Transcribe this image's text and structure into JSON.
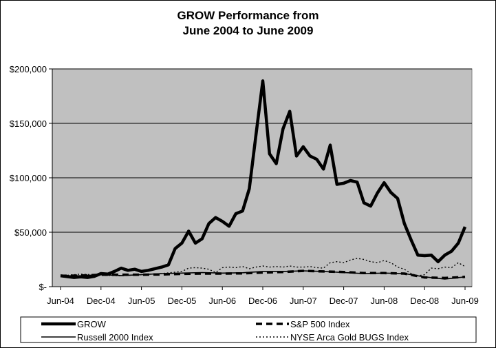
{
  "chart_data": {
    "type": "line",
    "title_line1": "GROW Performance from",
    "title_line2": "June 2004 to June 2009",
    "xlabel": "",
    "ylabel": "",
    "ylim": [
      0,
      200000
    ],
    "y_ticks": [
      0,
      50000,
      100000,
      150000,
      200000
    ],
    "y_tick_labels": [
      "$-",
      "$50,000",
      "$100,000",
      "$150,000",
      "$200,000"
    ],
    "x_tick_labels": [
      "Jun-04",
      "Dec-04",
      "Jun-05",
      "Dec-05",
      "Jun-06",
      "Dec-06",
      "Jun-07",
      "Dec-07",
      "Jun-08",
      "Dec-08",
      "Jun-09"
    ],
    "x_tick_months": [
      0,
      6,
      12,
      18,
      24,
      30,
      36,
      42,
      48,
      54,
      60
    ],
    "grid": "horizontal",
    "plot_background": "#c0c0c0",
    "legend_position": "bottom",
    "series": [
      {
        "name": "GROW",
        "style": "thick-solid",
        "months": [
          0,
          2,
          3,
          4,
          5,
          6,
          7,
          8,
          9,
          10,
          11,
          12,
          13,
          14,
          15,
          16,
          17,
          18,
          19,
          20,
          21,
          22,
          23,
          24,
          25,
          26,
          27,
          28,
          29,
          30,
          31,
          32,
          33,
          34,
          35,
          36,
          37,
          38,
          39,
          40,
          41,
          42,
          43,
          44,
          45,
          46,
          47,
          48,
          49,
          50,
          51,
          52,
          53,
          54,
          55,
          56,
          57,
          58,
          59,
          60
        ],
        "values": [
          10000,
          8500,
          9000,
          8500,
          9500,
          12000,
          11500,
          14000,
          17000,
          15000,
          16000,
          14000,
          15000,
          16500,
          18000,
          20000,
          35000,
          40000,
          51000,
          40000,
          44000,
          58000,
          63500,
          60000,
          55500,
          67000,
          69500,
          90000,
          140000,
          189000,
          122000,
          113000,
          145000,
          161000,
          120000,
          128500,
          120000,
          117000,
          108000,
          130000,
          94000,
          95000,
          97500,
          96000,
          77000,
          74000,
          86000,
          95500,
          86500,
          81000,
          58000,
          43000,
          29000,
          28500,
          29000,
          23000,
          29000,
          32500,
          40000,
          55000
        ]
      },
      {
        "name": "S&P 500 Index",
        "style": "thick-dashed",
        "months": [
          0,
          3,
          6,
          9,
          12,
          15,
          18,
          21,
          24,
          27,
          30,
          33,
          36,
          39,
          42,
          45,
          48,
          51,
          54,
          57,
          60
        ],
        "values": [
          10000,
          10200,
          11000,
          11000,
          11000,
          11200,
          11800,
          12000,
          12000,
          12200,
          13000,
          13500,
          14500,
          14000,
          13500,
          12500,
          12500,
          12000,
          8500,
          8000,
          9000
        ]
      },
      {
        "name": "Russell 2000 Index",
        "style": "thin-solid",
        "months": [
          0,
          3,
          6,
          9,
          12,
          15,
          18,
          21,
          24,
          27,
          30,
          33,
          36,
          39,
          42,
          45,
          48,
          51,
          54,
          57,
          60
        ],
        "values": [
          10000,
          10000,
          11000,
          10200,
          11000,
          12000,
          12500,
          13000,
          12500,
          12800,
          14000,
          14000,
          14500,
          14000,
          13000,
          12000,
          12500,
          12000,
          9000,
          7000,
          9000
        ]
      },
      {
        "name": "NYSE Arca Gold BUGS Index",
        "style": "thin-dotted",
        "months": [
          0,
          3,
          6,
          9,
          12,
          15,
          18,
          19,
          20,
          21,
          22,
          23,
          24,
          25,
          26,
          27,
          28,
          29,
          30,
          31,
          32,
          33,
          34,
          35,
          36,
          37,
          38,
          39,
          40,
          41,
          42,
          43,
          44,
          45,
          46,
          47,
          48,
          49,
          50,
          51,
          52,
          53,
          54,
          55,
          56,
          57,
          58,
          59,
          60
        ],
        "values": [
          10000,
          11500,
          10500,
          10000,
          11000,
          12000,
          14000,
          17000,
          17500,
          17000,
          16000,
          13000,
          17500,
          18000,
          17500,
          18500,
          16500,
          18000,
          19000,
          18000,
          18500,
          18000,
          19000,
          18000,
          18000,
          18500,
          17500,
          17000,
          22000,
          23000,
          22000,
          24500,
          26000,
          25000,
          23000,
          22000,
          24000,
          22000,
          18000,
          16000,
          12000,
          10000,
          11000,
          17000,
          16500,
          18000,
          17500,
          22000,
          18500
        ]
      }
    ]
  }
}
